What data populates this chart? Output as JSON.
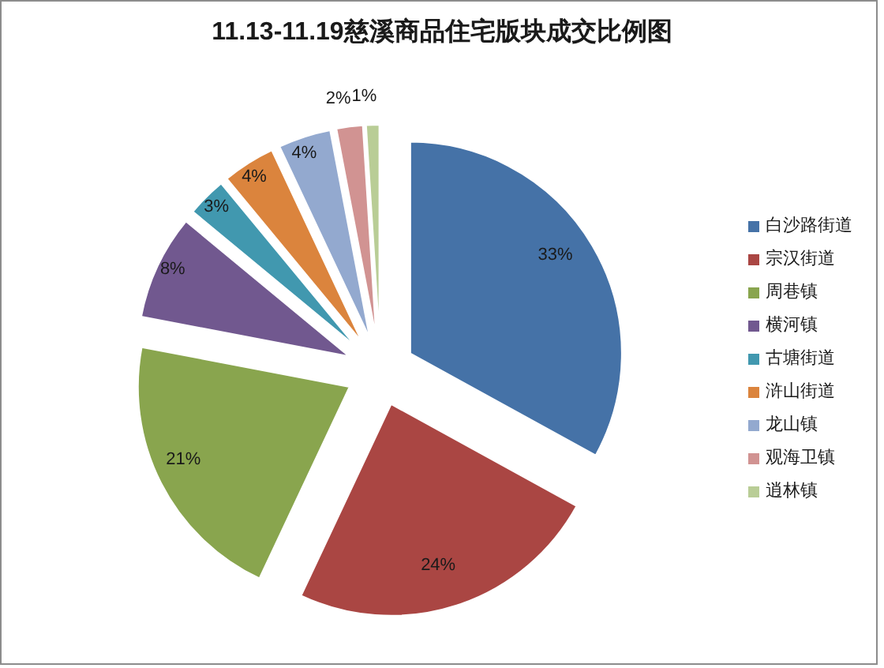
{
  "chart_data": {
    "type": "pie",
    "title": "11.13-11.19慈溪商品住宅版块成交比例图",
    "categories": [
      "白沙路街道",
      "宗汉街道",
      "周巷镇",
      "横河镇",
      "古塘街道",
      "浒山街道",
      "龙山镇",
      "观海卫镇",
      "逍林镇"
    ],
    "values": [
      33,
      24,
      21,
      8,
      3,
      4,
      4,
      2,
      1
    ],
    "colors": [
      "#4572a7",
      "#aa4643",
      "#89a54e",
      "#71588f",
      "#4198af",
      "#db843d",
      "#93a9cf",
      "#d19392",
      "#b9cd96"
    ],
    "value_labels": [
      "33%",
      "24%",
      "21%",
      "8%",
      "3%",
      "4%",
      "4%",
      "2%",
      "1%"
    ],
    "legend": "right"
  }
}
